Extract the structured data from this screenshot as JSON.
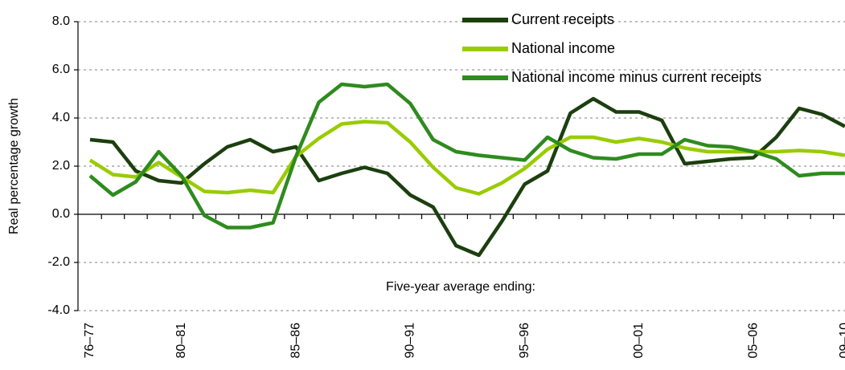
{
  "chart_data": {
    "type": "line",
    "y_label": "Real percentage growth",
    "annotation": "Five-year average ending:",
    "categories": [
      "76–77",
      null,
      null,
      null,
      "80–81",
      null,
      null,
      null,
      null,
      "85–86",
      null,
      null,
      null,
      null,
      "90–91",
      null,
      null,
      null,
      null,
      "95–96",
      null,
      null,
      null,
      null,
      "00–01",
      null,
      null,
      null,
      null,
      "05–06",
      null,
      null,
      null,
      "09–10"
    ],
    "series": [
      {
        "name": "Current receipts",
        "color": "#1b3f0e",
        "values": [
          3.1,
          3.0,
          1.8,
          1.4,
          1.3,
          2.1,
          2.8,
          3.1,
          2.6,
          2.8,
          1.4,
          1.7,
          1.95,
          1.7,
          0.8,
          0.3,
          -1.3,
          -1.7,
          -0.3,
          1.25,
          1.8,
          4.2,
          4.8,
          4.25,
          4.25,
          3.9,
          2.1,
          2.2,
          2.3,
          2.35,
          3.2,
          4.4,
          4.15,
          3.65
        ]
      },
      {
        "name": "National income",
        "color": "#99cc00",
        "values": [
          2.25,
          1.65,
          1.55,
          2.15,
          1.55,
          0.95,
          0.9,
          1.0,
          0.9,
          2.4,
          3.15,
          3.75,
          3.85,
          3.8,
          3.0,
          1.95,
          1.1,
          0.85,
          1.3,
          1.9,
          2.7,
          3.2,
          3.2,
          3.0,
          3.15,
          3.0,
          2.75,
          2.6,
          2.6,
          2.6,
          2.6,
          2.65,
          2.6,
          2.45
        ]
      },
      {
        "name": "National income minus current receipts",
        "color": "#2e8b1e",
        "values": [
          1.6,
          0.8,
          1.35,
          2.6,
          1.6,
          -0.05,
          -0.55,
          -0.55,
          -0.35,
          2.4,
          4.65,
          5.4,
          5.3,
          5.4,
          4.6,
          3.1,
          2.6,
          2.45,
          2.35,
          2.25,
          3.2,
          2.65,
          2.35,
          2.3,
          2.5,
          2.5,
          3.1,
          2.85,
          2.8,
          2.6,
          2.3,
          1.6,
          1.7,
          1.7
        ]
      }
    ],
    "ylim": [
      -4,
      8
    ],
    "yticks": [
      {
        "value": -4,
        "label": "-4.0"
      },
      {
        "value": -2,
        "label": "-2.0"
      },
      {
        "value": 0,
        "label": "0.0"
      },
      {
        "value": 2,
        "label": "2.0"
      },
      {
        "value": 4,
        "label": "4.0"
      },
      {
        "value": 6,
        "label": "6.0"
      },
      {
        "value": 8,
        "label": "8.0"
      }
    ],
    "grid": true,
    "legend": "top-right"
  }
}
